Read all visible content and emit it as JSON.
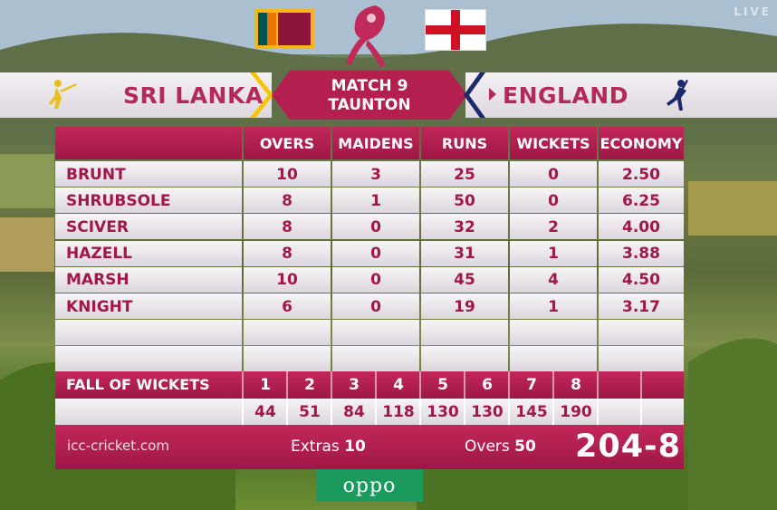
{
  "broadcast": {
    "live_label": "LIVE"
  },
  "header": {
    "team_left": "SRI LANKA",
    "team_right": "ENGLAND",
    "match_title": "MATCH 9",
    "venue": "TAUNTON"
  },
  "columns": [
    "OVERS",
    "MAIDENS",
    "RUNS",
    "WICKETS",
    "ECONOMY"
  ],
  "bowlers": [
    {
      "name": "BRUNT",
      "overs": "10",
      "maidens": "3",
      "runs": "25",
      "wickets": "0",
      "economy": "2.50"
    },
    {
      "name": "SHRUBSOLE",
      "overs": "8",
      "maidens": "1",
      "runs": "50",
      "wickets": "0",
      "economy": "6.25"
    },
    {
      "name": "SCIVER",
      "overs": "8",
      "maidens": "0",
      "runs": "32",
      "wickets": "2",
      "economy": "4.00"
    },
    {
      "name": "HAZELL",
      "overs": "8",
      "maidens": "0",
      "runs": "31",
      "wickets": "1",
      "economy": "3.88"
    },
    {
      "name": "MARSH",
      "overs": "10",
      "maidens": "0",
      "runs": "45",
      "wickets": "4",
      "economy": "4.50"
    },
    {
      "name": "KNIGHT",
      "overs": "6",
      "maidens": "0",
      "runs": "19",
      "wickets": "1",
      "economy": "3.17"
    }
  ],
  "fall_of_wickets": {
    "label": "FALL OF WICKETS",
    "wickets": [
      "1",
      "2",
      "3",
      "4",
      "5",
      "6",
      "7",
      "8"
    ],
    "scores": [
      "44",
      "51",
      "84",
      "118",
      "130",
      "130",
      "145",
      "190"
    ]
  },
  "footer": {
    "site": "icc-cricket.com",
    "extras_label": "Extras",
    "extras_value": "10",
    "overs_label": "Overs",
    "overs_value": "50",
    "total": "204-8"
  },
  "sponsor": "oppo",
  "colors": {
    "brand_crimson": "#b5295a",
    "header_dark": "#9e1746",
    "text_crimson": "#a2174a",
    "sponsor_green": "#1a9a5c"
  }
}
